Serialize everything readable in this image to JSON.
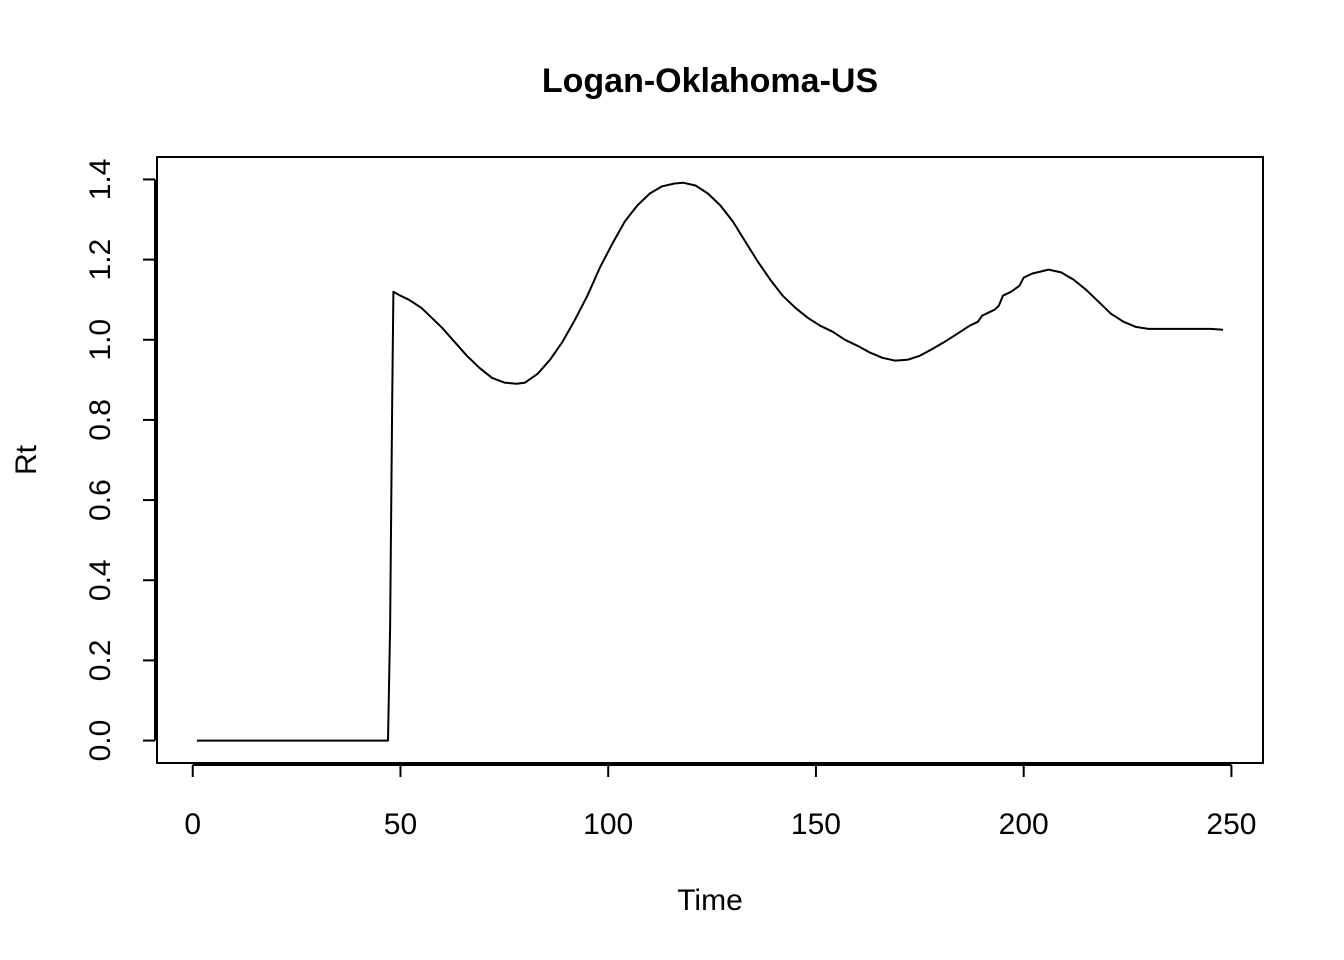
{
  "chart_data": {
    "type": "line",
    "title": "Logan-Oklahoma-US",
    "xlabel": "Time",
    "ylabel": "Rt",
    "xlim": [
      -8.6,
      257.6
    ],
    "ylim": [
      -0.056,
      1.456
    ],
    "x_ticks": [
      0,
      50,
      100,
      150,
      200,
      250
    ],
    "x_tick_labels": [
      "0",
      "50",
      "100",
      "150",
      "200",
      "250"
    ],
    "y_ticks": [
      0.0,
      0.2,
      0.4,
      0.6,
      0.8,
      1.0,
      1.2,
      1.4
    ],
    "y_tick_labels": [
      "0.0",
      "0.2",
      "0.4",
      "0.6",
      "0.8",
      "1.0",
      "1.2",
      "1.4"
    ],
    "grid": false,
    "series": [
      {
        "color": "#000000",
        "points": [
          [
            1,
            0.0
          ],
          [
            10,
            0.0
          ],
          [
            20,
            0.0
          ],
          [
            30,
            0.0
          ],
          [
            40,
            0.0
          ],
          [
            47,
            0.0
          ],
          [
            47.5,
            0.28
          ],
          [
            48,
            0.85
          ],
          [
            48.3,
            1.12
          ],
          [
            50,
            1.11
          ],
          [
            52,
            1.1
          ],
          [
            55,
            1.08
          ],
          [
            58,
            1.05
          ],
          [
            60,
            1.03
          ],
          [
            63,
            0.995
          ],
          [
            66,
            0.96
          ],
          [
            69,
            0.93
          ],
          [
            72,
            0.905
          ],
          [
            75,
            0.893
          ],
          [
            78,
            0.89
          ],
          [
            80,
            0.893
          ],
          [
            83,
            0.915
          ],
          [
            86,
            0.95
          ],
          [
            89,
            0.995
          ],
          [
            92,
            1.05
          ],
          [
            95,
            1.11
          ],
          [
            98,
            1.18
          ],
          [
            101,
            1.24
          ],
          [
            104,
            1.295
          ],
          [
            107,
            1.335
          ],
          [
            110,
            1.365
          ],
          [
            113,
            1.383
          ],
          [
            116,
            1.39
          ],
          [
            118,
            1.392
          ],
          [
            121,
            1.385
          ],
          [
            124,
            1.365
          ],
          [
            127,
            1.335
          ],
          [
            130,
            1.295
          ],
          [
            133,
            1.245
          ],
          [
            136,
            1.195
          ],
          [
            139,
            1.15
          ],
          [
            142,
            1.11
          ],
          [
            145,
            1.08
          ],
          [
            148,
            1.055
          ],
          [
            151,
            1.035
          ],
          [
            154,
            1.02
          ],
          [
            157,
            1.0
          ],
          [
            160,
            0.985
          ],
          [
            163,
            0.968
          ],
          [
            166,
            0.955
          ],
          [
            169,
            0.948
          ],
          [
            172,
            0.95
          ],
          [
            175,
            0.96
          ],
          [
            178,
            0.977
          ],
          [
            181,
            0.995
          ],
          [
            184,
            1.015
          ],
          [
            187,
            1.035
          ],
          [
            189,
            1.045
          ],
          [
            190,
            1.06
          ],
          [
            193,
            1.075
          ],
          [
            194,
            1.085
          ],
          [
            195,
            1.11
          ],
          [
            197,
            1.12
          ],
          [
            199,
            1.135
          ],
          [
            200,
            1.155
          ],
          [
            202,
            1.165
          ],
          [
            204,
            1.17
          ],
          [
            206,
            1.175
          ],
          [
            209,
            1.168
          ],
          [
            212,
            1.15
          ],
          [
            215,
            1.125
          ],
          [
            218,
            1.095
          ],
          [
            221,
            1.065
          ],
          [
            224,
            1.045
          ],
          [
            227,
            1.032
          ],
          [
            230,
            1.027
          ],
          [
            235,
            1.027
          ],
          [
            240,
            1.027
          ],
          [
            245,
            1.027
          ],
          [
            248,
            1.025
          ]
        ]
      }
    ]
  }
}
